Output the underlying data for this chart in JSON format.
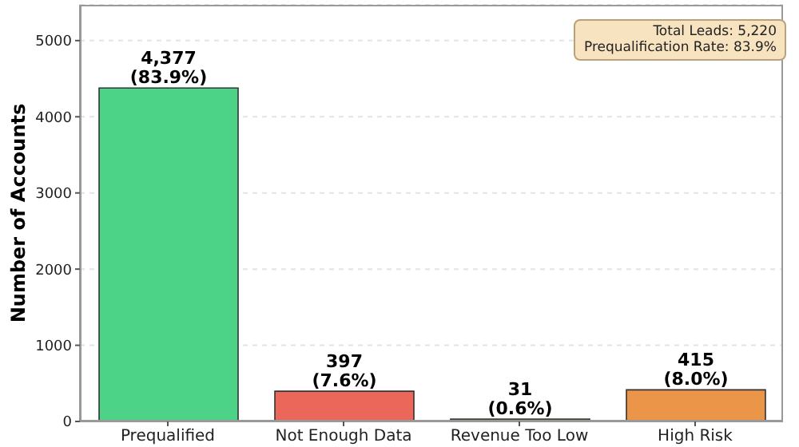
{
  "chart_data": {
    "type": "bar",
    "ylabel": "Number of Accounts",
    "categories": [
      "Prequalified",
      "Not Enough Data",
      "Revenue Too Low",
      "High Risk"
    ],
    "values": [
      4377,
      397,
      31,
      415
    ],
    "colors": [
      "#4cd387",
      "#ea6759",
      "#9a7544",
      "#ea9548"
    ],
    "value_labels": [
      "4,377\n(83.9%)",
      "397\n(7.6%)",
      "31\n(0.6%)",
      "415\n(8.0%)"
    ],
    "ylim": [
      0,
      5470
    ],
    "yticks": [
      0,
      1000,
      2000,
      3000,
      4000,
      5000
    ],
    "grid": "y",
    "annotations": [
      "Total Leads: 5,220",
      "Prequalification Rate: 83.9%"
    ]
  }
}
